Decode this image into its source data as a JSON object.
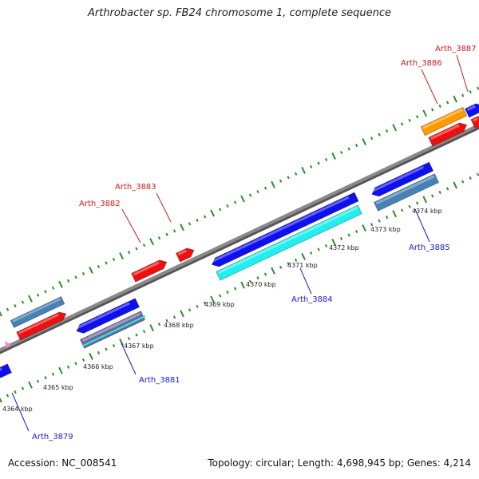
{
  "title": "Arthrobacter sp. FB24 chromosome 1, complete sequence",
  "footer": {
    "accession": "Accession: NC_008541",
    "summary": "Topology: circular; Length: 4,698,945 bp; Genes: 4,214"
  },
  "kbp_labels": [
    "4364 kbp",
    "4365 kbp",
    "4366 kbp",
    "4367 kbp",
    "4368 kbp",
    "4369 kbp",
    "4370 kbp",
    "4371 kbp",
    "4372 kbp",
    "4373 kbp",
    "4374 kbp"
  ],
  "gene_labels": [
    {
      "name": "Arth_3879",
      "color": "#1a1acc"
    },
    {
      "name": "Arth_3881",
      "color": "#1a1acc"
    },
    {
      "name": "Arth_3882",
      "color": "#cc1a1a"
    },
    {
      "name": "Arth_3883",
      "color": "#cc1a1a"
    },
    {
      "name": "Arth_3884",
      "color": "#1a1acc"
    },
    {
      "name": "Arth_3885",
      "color": "#1a1acc"
    },
    {
      "name": "Arth_3886",
      "color": "#cc1a1a"
    },
    {
      "name": "Arth_3887",
      "color": "#cc1a1a"
    }
  ],
  "colors": {
    "backbone": "#8a8a8a",
    "tick": "#2e8b2e",
    "blue": "#1010ee",
    "red": "#ee1010",
    "steel": "#4682b4",
    "cyan": "#22eeee",
    "orange": "#ff9900",
    "purple": "#6a6a9a",
    "pink": "#ee88cc"
  }
}
